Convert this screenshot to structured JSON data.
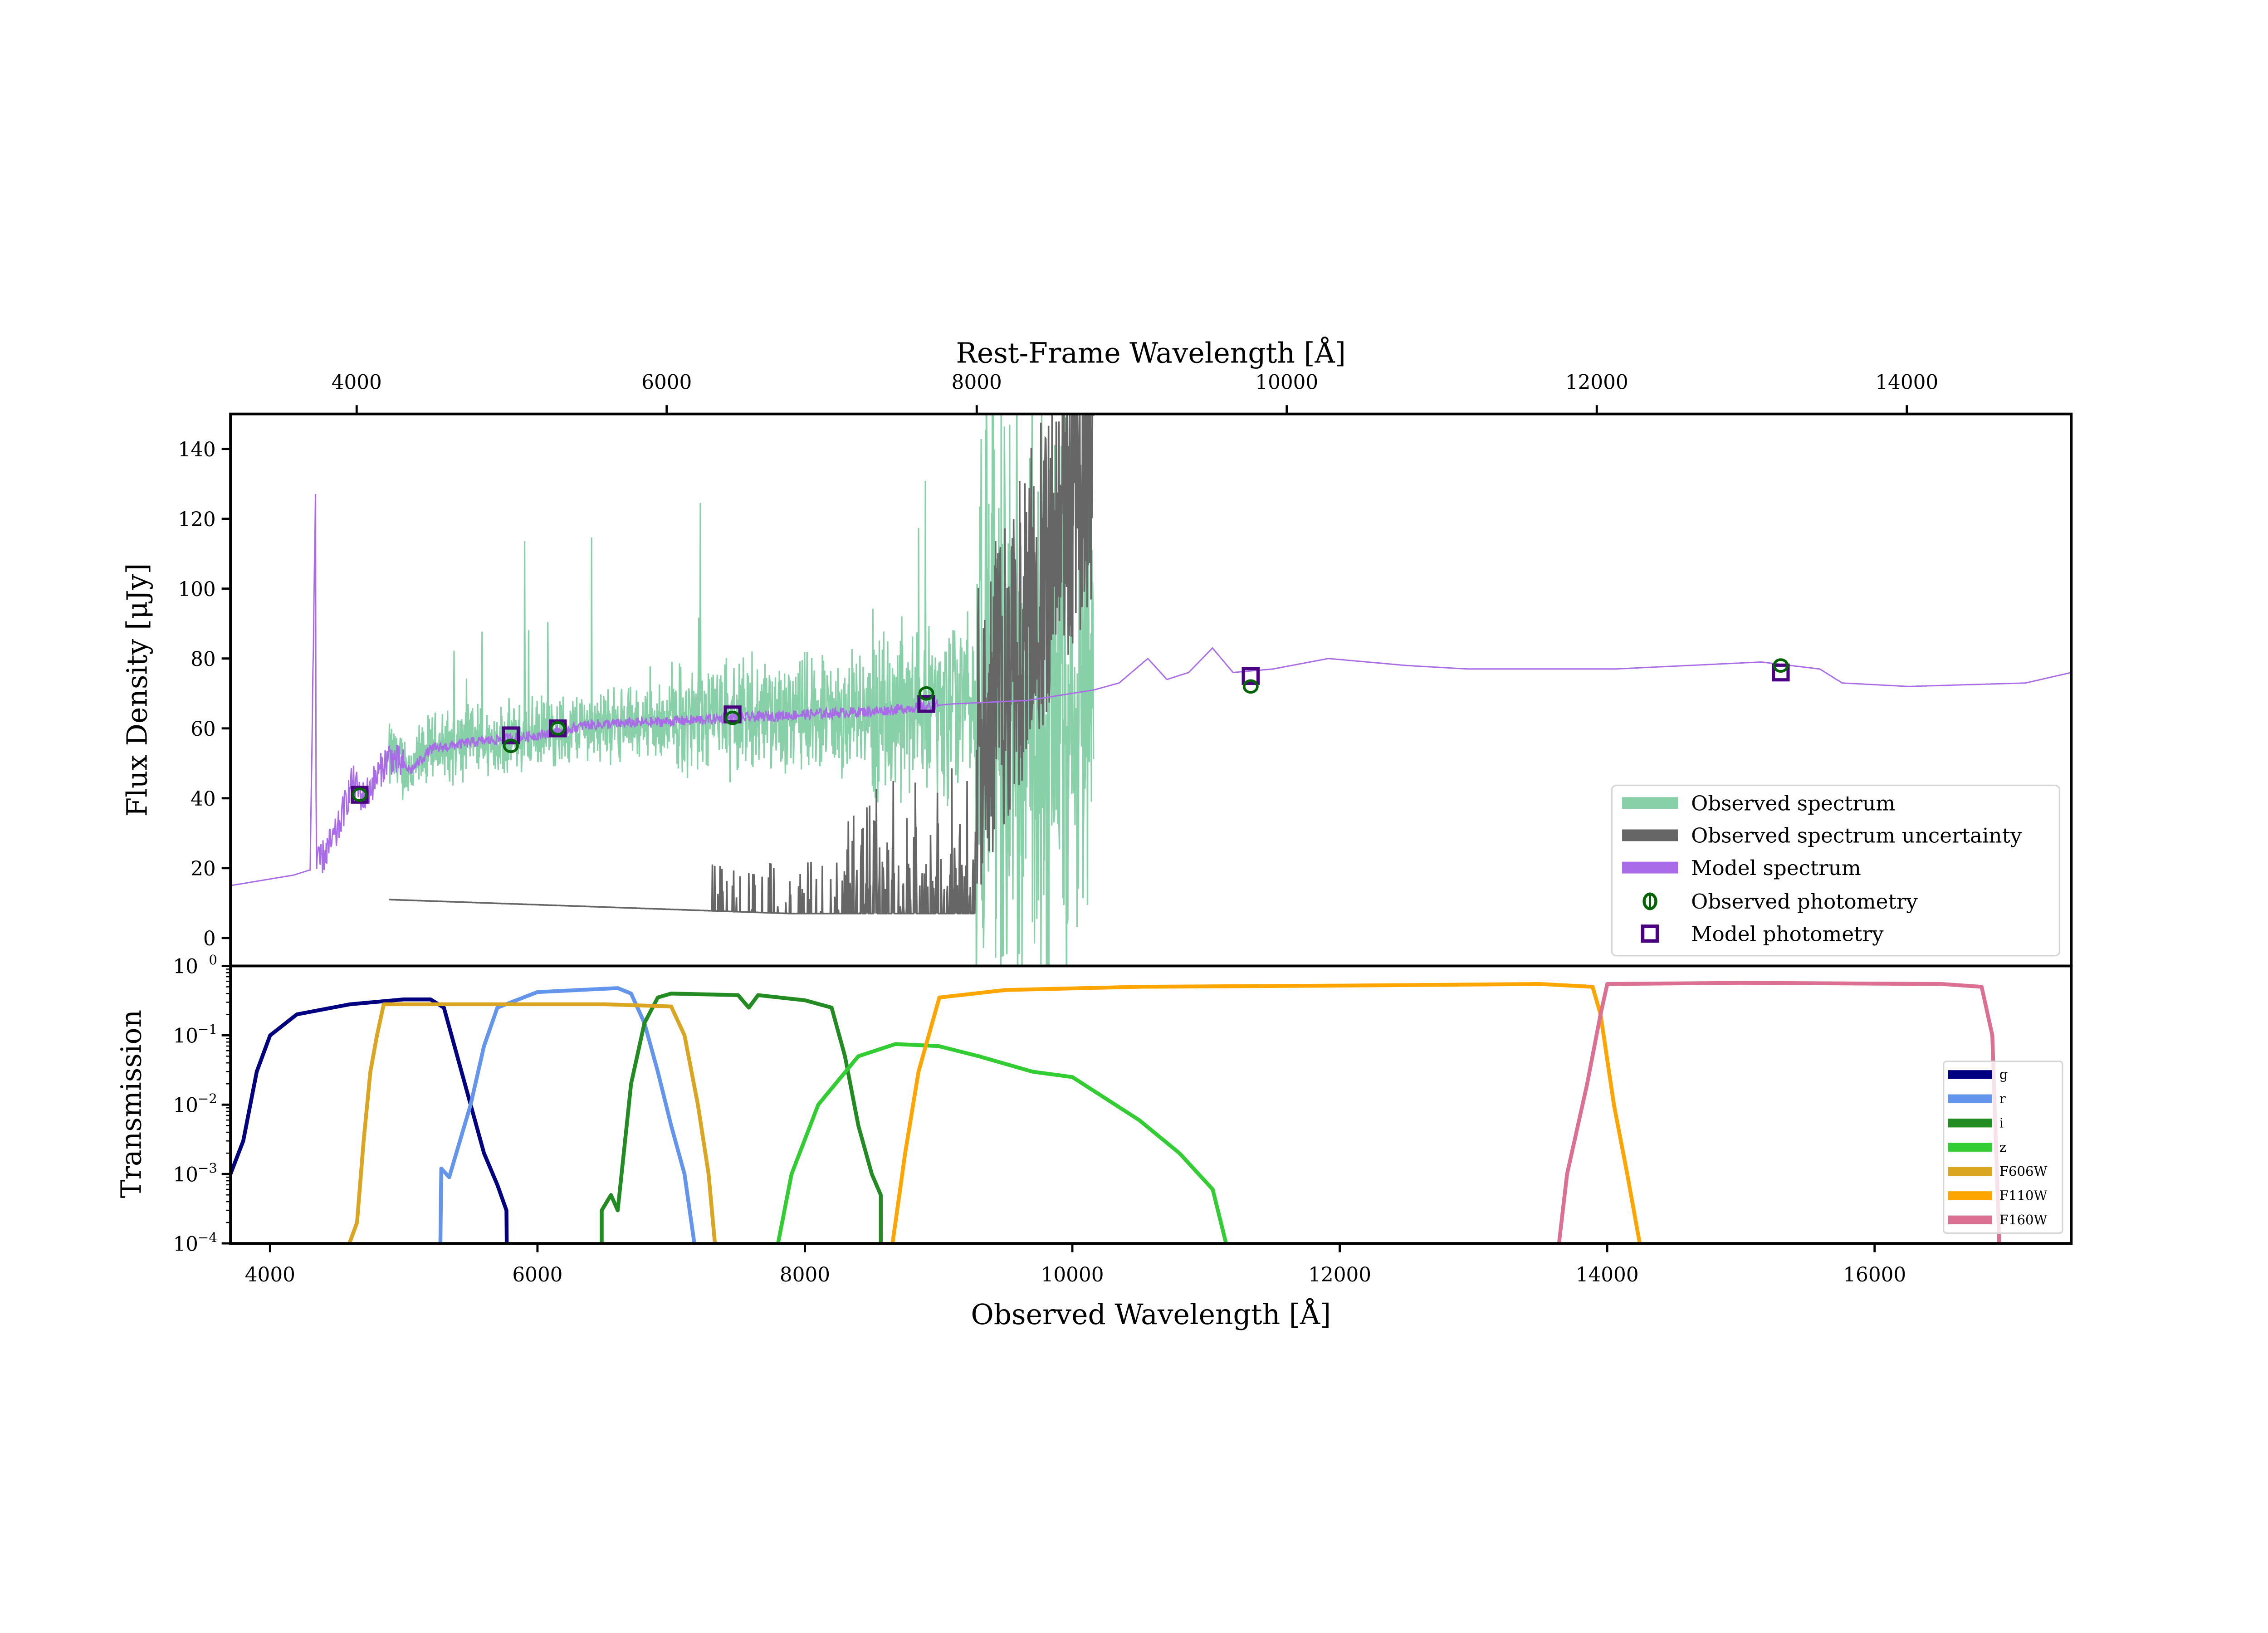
{
  "chart_data": [
    {
      "type": "line",
      "panel": "top",
      "xlabel_top": "Rest-Frame Wavelength [Å]",
      "ylabel": "Flux Density [μJy]",
      "top_xticks": [
        "4000",
        "6000",
        "8000",
        "10000",
        "12000",
        "14000"
      ],
      "top_xtick_values": [
        4000,
        6000,
        8000,
        10000,
        12000,
        14000
      ],
      "rest_xlim": [
        3186,
        15061
      ],
      "xlim": [
        3704,
        17471
      ],
      "ylim": [
        -8,
        150
      ],
      "yticks": [
        "0",
        "20",
        "40",
        "60",
        "80",
        "100",
        "120",
        "140"
      ],
      "ytick_values": [
        0,
        20,
        40,
        60,
        80,
        100,
        120,
        140
      ],
      "grid": false,
      "legend_placement": "lower-right",
      "legend": [
        "Observed spectrum",
        "Observed spectrum uncertainty",
        "Model spectrum",
        "Observed photometry",
        "Model photometry"
      ],
      "colors": {
        "observed_spectrum": "#88d1a8",
        "uncertainty": "#666666",
        "model_spectrum": "#a96be8",
        "observed_photometry": "#006400",
        "model_photometry": "#4b0082"
      },
      "model_spectrum": [
        [
          3704,
          15
        ],
        [
          4176,
          18
        ],
        [
          4300,
          19.5
        ],
        [
          4340,
          128
        ],
        [
          4345,
          20
        ],
        [
          4500,
          30
        ],
        [
          4615,
          45
        ],
        [
          4700,
          40
        ],
        [
          4890,
          52
        ],
        [
          5054,
          48
        ],
        [
          5200,
          54
        ],
        [
          5350,
          55
        ],
        [
          5500,
          56
        ],
        [
          6000,
          58
        ],
        [
          6372,
          61
        ],
        [
          7000,
          62
        ],
        [
          7470,
          63
        ],
        [
          8000,
          64
        ],
        [
          8567,
          65
        ],
        [
          9100,
          67
        ],
        [
          9665,
          68
        ],
        [
          10160,
          71
        ],
        [
          10350,
          73
        ],
        [
          10565,
          80
        ],
        [
          10707,
          74
        ],
        [
          10870,
          76
        ],
        [
          11048,
          83
        ],
        [
          11202,
          76
        ],
        [
          11500,
          77
        ],
        [
          11915,
          80
        ],
        [
          12500,
          78
        ],
        [
          12958,
          77
        ],
        [
          14056,
          77
        ],
        [
          15152,
          79
        ],
        [
          15590,
          77
        ],
        [
          15757,
          73
        ],
        [
          16252,
          72
        ],
        [
          17130,
          73
        ],
        [
          17471,
          76
        ]
      ],
      "observed_spectrum_range": [
        4890,
        10160
      ],
      "photometry": {
        "wavelength": [
          4670,
          5801,
          6152,
          7459,
          8908,
          11334,
          15298
        ],
        "observed": [
          41,
          55,
          60,
          63,
          70,
          72,
          78
        ],
        "model": [
          41,
          58,
          60,
          64,
          67,
          75,
          76
        ]
      }
    },
    {
      "type": "line",
      "panel": "bottom",
      "xlabel": "Observed Wavelength [Å]",
      "ylabel": "Transmission",
      "xlim": [
        3704,
        17471
      ],
      "xticks": [
        "4000",
        "6000",
        "8000",
        "10000",
        "12000",
        "14000",
        "16000"
      ],
      "xtick_values": [
        4000,
        6000,
        8000,
        10000,
        12000,
        14000,
        16000
      ],
      "yscale": "log",
      "ylim": [
        0.0001,
        1
      ],
      "yticks": [
        {
          "base": "10",
          "exp": "0",
          "value": 1
        },
        {
          "base": "10",
          "exp": "−1",
          "value": 0.1
        },
        {
          "base": "10",
          "exp": "−2",
          "value": 0.01
        },
        {
          "base": "10",
          "exp": "−3",
          "value": 0.001
        },
        {
          "base": "10",
          "exp": "−4",
          "value": 0.0001
        }
      ],
      "legend_placement": "right",
      "series": [
        {
          "name": "g",
          "color": "#000080",
          "points": [
            [
              3704,
              0.001
            ],
            [
              3800,
              0.003
            ],
            [
              3900,
              0.03
            ],
            [
              4000,
              0.1
            ],
            [
              4200,
              0.2
            ],
            [
              4600,
              0.28
            ],
            [
              5000,
              0.33
            ],
            [
              5200,
              0.33
            ],
            [
              5300,
              0.25
            ],
            [
              5400,
              0.05
            ],
            [
              5500,
              0.01
            ],
            [
              5600,
              0.002
            ],
            [
              5700,
              0.0007
            ],
            [
              5768,
              0.0003
            ],
            [
              5770,
              0.0001
            ]
          ]
        },
        {
          "name": "r",
          "color": "#6495ed",
          "points": [
            [
              5274,
              0.0001
            ],
            [
              5280,
              0.0012
            ],
            [
              5340,
              0.0009
            ],
            [
              5500,
              0.01
            ],
            [
              5600,
              0.07
            ],
            [
              5700,
              0.25
            ],
            [
              6000,
              0.42
            ],
            [
              6600,
              0.48
            ],
            [
              6700,
              0.4
            ],
            [
              6800,
              0.15
            ],
            [
              6900,
              0.03
            ],
            [
              7000,
              0.005
            ],
            [
              7100,
              0.001
            ],
            [
              7173,
              0.0001
            ]
          ]
        },
        {
          "name": "i",
          "color": "#228b22",
          "points": [
            [
              6481,
              0.0001
            ],
            [
              6481,
              0.0003
            ],
            [
              6550,
              0.0005
            ],
            [
              6600,
              0.0003
            ],
            [
              6700,
              0.02
            ],
            [
              6800,
              0.15
            ],
            [
              6900,
              0.35
            ],
            [
              7000,
              0.4
            ],
            [
              7500,
              0.38
            ],
            [
              7580,
              0.25
            ],
            [
              7650,
              0.38
            ],
            [
              8000,
              0.32
            ],
            [
              8200,
              0.25
            ],
            [
              8300,
              0.05
            ],
            [
              8400,
              0.005
            ],
            [
              8500,
              0.001
            ],
            [
              8567,
              0.0005
            ],
            [
              8567,
              0.0001
            ]
          ]
        },
        {
          "name": "z",
          "color": "#32cd32",
          "points": [
            [
              7799,
              0.0001
            ],
            [
              7900,
              0.001
            ],
            [
              8100,
              0.01
            ],
            [
              8400,
              0.05
            ],
            [
              8677,
              0.075
            ],
            [
              9000,
              0.07
            ],
            [
              9300,
              0.05
            ],
            [
              9700,
              0.03
            ],
            [
              10000,
              0.025
            ],
            [
              10500,
              0.006
            ],
            [
              10800,
              0.002
            ],
            [
              11050,
              0.0006
            ],
            [
              11150,
              0.0001
            ]
          ]
        },
        {
          "name": "F606W",
          "color": "#daa520",
          "points": [
            [
              4593,
              0.0001
            ],
            [
              4650,
              0.0002
            ],
            [
              4700,
              0.003
            ],
            [
              4750,
              0.03
            ],
            [
              4800,
              0.1
            ],
            [
              4850,
              0.28
            ],
            [
              5500,
              0.28
            ],
            [
              6500,
              0.28
            ],
            [
              7000,
              0.26
            ],
            [
              7100,
              0.1
            ],
            [
              7200,
              0.01
            ],
            [
              7280,
              0.001
            ],
            [
              7327,
              0.0001
            ]
          ]
        },
        {
          "name": "F110W",
          "color": "#ffa500",
          "points": [
            [
              8655,
              0.0001
            ],
            [
              8750,
              0.002
            ],
            [
              8850,
              0.03
            ],
            [
              9006,
              0.35
            ],
            [
              9500,
              0.45
            ],
            [
              10500,
              0.5
            ],
            [
              12000,
              0.52
            ],
            [
              13500,
              0.55
            ],
            [
              13891,
              0.5
            ],
            [
              13950,
              0.2
            ],
            [
              14050,
              0.01
            ],
            [
              14150,
              0.001
            ],
            [
              14243,
              0.0001
            ]
          ]
        },
        {
          "name": "F160W",
          "color": "#db7093",
          "points": [
            [
              13639,
              0.0001
            ],
            [
              13700,
              0.001
            ],
            [
              13850,
              0.02
            ],
            [
              13950,
              0.2
            ],
            [
              14001,
              0.55
            ],
            [
              15000,
              0.57
            ],
            [
              16500,
              0.55
            ],
            [
              16800,
              0.5
            ],
            [
              16880,
              0.1
            ],
            [
              16932,
              0.0001
            ]
          ]
        }
      ]
    }
  ]
}
